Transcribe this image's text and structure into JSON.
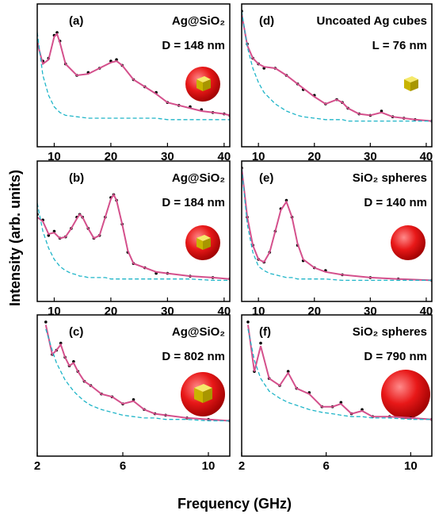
{
  "axis_labels": {
    "y": "Intensity (arb. units)",
    "x": "Frequency (GHz)"
  },
  "chart_data": [
    {
      "type": "line",
      "label": "(a)",
      "sample": "Ag@SiO₂",
      "size": "D = 148 nm",
      "xlim": [
        7,
        41
      ],
      "xticks": [
        10,
        20,
        30,
        40
      ],
      "ylim": [
        0,
        1
      ],
      "x": [
        7,
        8,
        9,
        10,
        10.5,
        11,
        12,
        14,
        16,
        18,
        20,
        21,
        22,
        24,
        26,
        28,
        30,
        32,
        34,
        36,
        38,
        40,
        41
      ],
      "series": [
        {
          "style": "dots",
          "color": "#000000",
          "values": [
            0.72,
            0.6,
            0.62,
            0.78,
            0.8,
            0.74,
            0.58,
            0.5,
            0.52,
            0.55,
            0.6,
            0.61,
            0.57,
            0.47,
            0.42,
            0.38,
            0.31,
            0.29,
            0.28,
            0.26,
            0.24,
            0.23,
            0.22
          ]
        },
        {
          "style": "line",
          "color": "#d4508c",
          "values": [
            0.73,
            0.58,
            0.61,
            0.77,
            0.79,
            0.73,
            0.58,
            0.5,
            0.51,
            0.55,
            0.59,
            0.6,
            0.57,
            0.47,
            0.42,
            0.37,
            0.31,
            0.29,
            0.27,
            0.25,
            0.24,
            0.23,
            0.22
          ]
        },
        {
          "style": "dashed",
          "color": "#1fb5c8",
          "values": [
            0.8,
            0.5,
            0.36,
            0.28,
            0.26,
            0.24,
            0.22,
            0.21,
            0.2,
            0.2,
            0.2,
            0.2,
            0.2,
            0.2,
            0.2,
            0.2,
            0.19,
            0.19,
            0.19,
            0.19,
            0.19,
            0.19,
            0.19
          ]
        }
      ]
    },
    {
      "type": "line",
      "label": "(b)",
      "sample": "Ag@SiO₂",
      "size": "D = 184 nm",
      "xlim": [
        7,
        41
      ],
      "xticks": [
        10,
        20,
        30,
        40
      ],
      "ylim": [
        0,
        1
      ],
      "x": [
        7,
        8,
        9,
        10,
        11,
        12,
        13,
        14,
        14.5,
        15,
        16,
        17,
        18,
        19,
        20,
        20.5,
        21,
        22,
        23,
        24,
        26,
        28,
        30,
        34,
        38,
        41
      ],
      "series": [
        {
          "style": "dots",
          "color": "#000000",
          "values": [
            0.62,
            0.58,
            0.47,
            0.5,
            0.45,
            0.46,
            0.52,
            0.6,
            0.62,
            0.6,
            0.52,
            0.45,
            0.47,
            0.6,
            0.74,
            0.76,
            0.72,
            0.55,
            0.35,
            0.27,
            0.24,
            0.2,
            0.2,
            0.18,
            0.17,
            0.16
          ]
        },
        {
          "style": "line",
          "color": "#d4508c",
          "values": [
            0.6,
            0.57,
            0.48,
            0.49,
            0.45,
            0.46,
            0.52,
            0.59,
            0.62,
            0.6,
            0.52,
            0.45,
            0.47,
            0.6,
            0.73,
            0.76,
            0.72,
            0.55,
            0.36,
            0.27,
            0.24,
            0.21,
            0.2,
            0.18,
            0.17,
            0.16
          ]
        },
        {
          "style": "dashed",
          "color": "#1fb5c8",
          "values": [
            0.7,
            0.5,
            0.38,
            0.3,
            0.25,
            0.22,
            0.2,
            0.19,
            0.18,
            0.18,
            0.17,
            0.17,
            0.17,
            0.17,
            0.16,
            0.16,
            0.16,
            0.16,
            0.16,
            0.16,
            0.16,
            0.16,
            0.16,
            0.16,
            0.15,
            0.15
          ]
        }
      ]
    },
    {
      "type": "line",
      "label": "(c)",
      "sample": "Ag@SiO₂",
      "size": "D = 802 nm",
      "xlim": [
        2,
        11
      ],
      "xticks": [
        2,
        6,
        10
      ],
      "ylim": [
        0,
        1
      ],
      "x": [
        2.4,
        2.7,
        2.9,
        3.1,
        3.3,
        3.5,
        3.7,
        3.9,
        4.2,
        4.5,
        5,
        5.5,
        6,
        6.5,
        7,
        7.5,
        8,
        9,
        10,
        11
      ],
      "series": [
        {
          "style": "dots",
          "color": "#000000",
          "values": [
            0.95,
            0.72,
            0.75,
            0.8,
            0.7,
            0.64,
            0.67,
            0.6,
            0.53,
            0.5,
            0.44,
            0.42,
            0.37,
            0.4,
            0.33,
            0.3,
            0.29,
            0.27,
            0.26,
            0.25
          ]
        },
        {
          "style": "line",
          "color": "#d4508c",
          "values": [
            0.93,
            0.72,
            0.75,
            0.79,
            0.7,
            0.64,
            0.66,
            0.6,
            0.53,
            0.5,
            0.44,
            0.42,
            0.37,
            0.39,
            0.33,
            0.3,
            0.29,
            0.27,
            0.26,
            0.25
          ]
        },
        {
          "style": "dashed",
          "color": "#1fb5c8",
          "values": [
            0.9,
            0.75,
            0.66,
            0.6,
            0.54,
            0.5,
            0.46,
            0.43,
            0.39,
            0.36,
            0.33,
            0.31,
            0.29,
            0.28,
            0.27,
            0.27,
            0.26,
            0.26,
            0.25,
            0.25
          ]
        }
      ]
    },
    {
      "type": "line",
      "label": "(d)",
      "sample": "Uncoated Ag cubes",
      "size": "L = 76 nm",
      "xlim": [
        7,
        41
      ],
      "xticks": [
        10,
        20,
        30,
        40
      ],
      "ylim": [
        0,
        1
      ],
      "x": [
        7,
        8,
        9,
        10,
        11,
        13,
        15,
        17,
        18,
        20,
        22,
        24,
        25,
        26,
        28,
        30,
        32,
        34,
        36,
        38,
        41
      ],
      "series": [
        {
          "style": "dots",
          "color": "#000000",
          "values": [
            0.95,
            0.72,
            0.62,
            0.58,
            0.55,
            0.55,
            0.5,
            0.44,
            0.4,
            0.36,
            0.3,
            0.33,
            0.31,
            0.27,
            0.23,
            0.22,
            0.25,
            0.21,
            0.2,
            0.19,
            0.18
          ]
        },
        {
          "style": "line",
          "color": "#d4508c",
          "values": [
            0.93,
            0.71,
            0.62,
            0.58,
            0.56,
            0.55,
            0.5,
            0.44,
            0.41,
            0.35,
            0.3,
            0.33,
            0.31,
            0.27,
            0.23,
            0.22,
            0.24,
            0.21,
            0.2,
            0.19,
            0.18
          ]
        },
        {
          "style": "dashed",
          "color": "#1fb5c8",
          "values": [
            0.95,
            0.7,
            0.55,
            0.45,
            0.38,
            0.3,
            0.25,
            0.22,
            0.21,
            0.2,
            0.19,
            0.19,
            0.19,
            0.18,
            0.18,
            0.18,
            0.18,
            0.18,
            0.18,
            0.18,
            0.18
          ]
        }
      ]
    },
    {
      "type": "line",
      "label": "(e)",
      "sample": "SiO₂ spheres",
      "size": "D = 140 nm",
      "xlim": [
        7,
        41
      ],
      "xticks": [
        10,
        20,
        30,
        40
      ],
      "ylim": [
        0,
        1
      ],
      "x": [
        7,
        8,
        9,
        10,
        11,
        12,
        13,
        14,
        15,
        16,
        17,
        18,
        20,
        22,
        25,
        30,
        35,
        41
      ],
      "series": [
        {
          "style": "dots",
          "color": "#000000",
          "values": [
            0.95,
            0.6,
            0.4,
            0.3,
            0.28,
            0.35,
            0.5,
            0.66,
            0.72,
            0.6,
            0.4,
            0.29,
            0.24,
            0.22,
            0.19,
            0.17,
            0.16,
            0.15
          ]
        },
        {
          "style": "line",
          "color": "#d4508c",
          "values": [
            0.95,
            0.6,
            0.4,
            0.3,
            0.28,
            0.35,
            0.5,
            0.65,
            0.71,
            0.6,
            0.41,
            0.3,
            0.24,
            0.21,
            0.19,
            0.17,
            0.16,
            0.15
          ]
        },
        {
          "style": "dashed",
          "color": "#1fb5c8",
          "values": [
            0.95,
            0.55,
            0.35,
            0.25,
            0.22,
            0.2,
            0.19,
            0.18,
            0.17,
            0.17,
            0.16,
            0.16,
            0.16,
            0.16,
            0.15,
            0.15,
            0.15,
            0.15
          ]
        }
      ]
    },
    {
      "type": "line",
      "label": "(f)",
      "sample": "SiO₂ spheres",
      "size": "D = 790 nm",
      "xlim": [
        2,
        11
      ],
      "xticks": [
        2,
        6,
        10
      ],
      "ylim": [
        0,
        1
      ],
      "x": [
        2.3,
        2.6,
        2.9,
        3.3,
        3.8,
        4.2,
        4.6,
        5.2,
        5.8,
        6.3,
        6.7,
        7.2,
        7.7,
        8.2,
        9,
        10,
        11
      ],
      "series": [
        {
          "style": "dots",
          "color": "#000000",
          "values": [
            0.95,
            0.6,
            0.8,
            0.55,
            0.5,
            0.6,
            0.48,
            0.45,
            0.35,
            0.35,
            0.38,
            0.3,
            0.33,
            0.28,
            0.28,
            0.27,
            0.26
          ]
        },
        {
          "style": "line",
          "color": "#d4508c",
          "values": [
            0.93,
            0.6,
            0.78,
            0.55,
            0.5,
            0.59,
            0.48,
            0.44,
            0.35,
            0.35,
            0.37,
            0.3,
            0.32,
            0.28,
            0.28,
            0.27,
            0.26
          ]
        },
        {
          "style": "dashed",
          "color": "#1fb5c8",
          "values": [
            0.9,
            0.68,
            0.55,
            0.46,
            0.41,
            0.38,
            0.36,
            0.33,
            0.31,
            0.3,
            0.29,
            0.28,
            0.28,
            0.27,
            0.27,
            0.26,
            0.26
          ]
        }
      ]
    }
  ]
}
